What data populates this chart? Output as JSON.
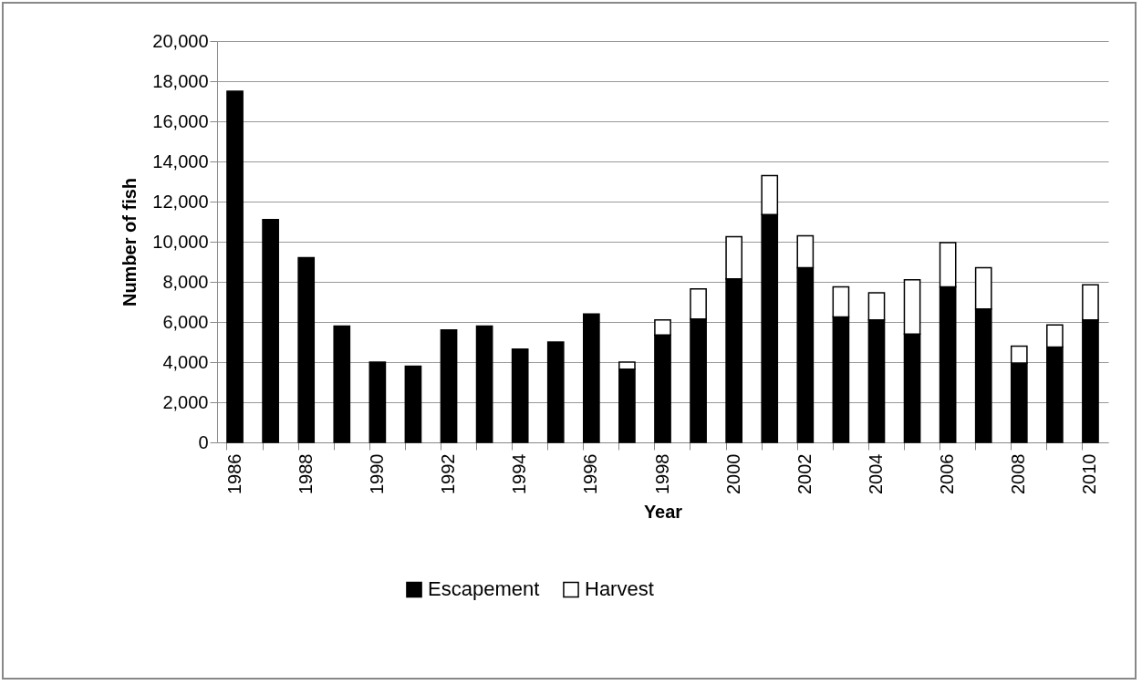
{
  "chart_data": {
    "type": "bar",
    "stacked": true,
    "xlabel": "Year",
    "ylabel": "Number of fish",
    "categories": [
      "1986",
      null,
      "1988",
      null,
      "1990",
      null,
      "1992",
      null,
      "1994",
      null,
      "1996",
      null,
      "1998",
      null,
      "2000",
      null,
      "2002",
      null,
      "2004",
      null,
      "2006",
      null,
      "2008",
      null,
      "2010"
    ],
    "series": [
      {
        "name": "Escapement",
        "color": "#000000",
        "values": [
          17500,
          11100,
          9200,
          5800,
          4000,
          3800,
          5600,
          5800,
          4650,
          5000,
          6400,
          3650,
          5350,
          6150,
          8150,
          11350,
          8700,
          6250,
          6100,
          5400,
          7750,
          6650,
          3950,
          4750,
          6100
        ]
      },
      {
        "name": "Harvest",
        "color": "#ffffff",
        "values": [
          null,
          null,
          null,
          null,
          null,
          null,
          null,
          null,
          null,
          null,
          null,
          350,
          750,
          1500,
          2100,
          1950,
          1600,
          1500,
          1350,
          2700,
          2200,
          2050,
          850,
          1100,
          1750
        ]
      }
    ],
    "ylim": [
      0,
      20000
    ],
    "yticks": [
      0,
      {
        "value": 2000,
        "label": "2,000"
      },
      {
        "value": 4000,
        "label": "4,000"
      },
      {
        "value": 6000,
        "label": "6,000"
      },
      {
        "value": 8000,
        "label": "8,000"
      },
      {
        "value": 10000,
        "label": "10,000"
      },
      {
        "value": 12000,
        "label": "12,000"
      },
      {
        "value": 14000,
        "label": "14,000"
      },
      {
        "value": 16000,
        "label": "16,000"
      },
      {
        "value": 18000,
        "label": "18,000"
      },
      {
        "value": 20000,
        "label": "20,000"
      }
    ],
    "grid": "y",
    "legend": "bottom"
  }
}
